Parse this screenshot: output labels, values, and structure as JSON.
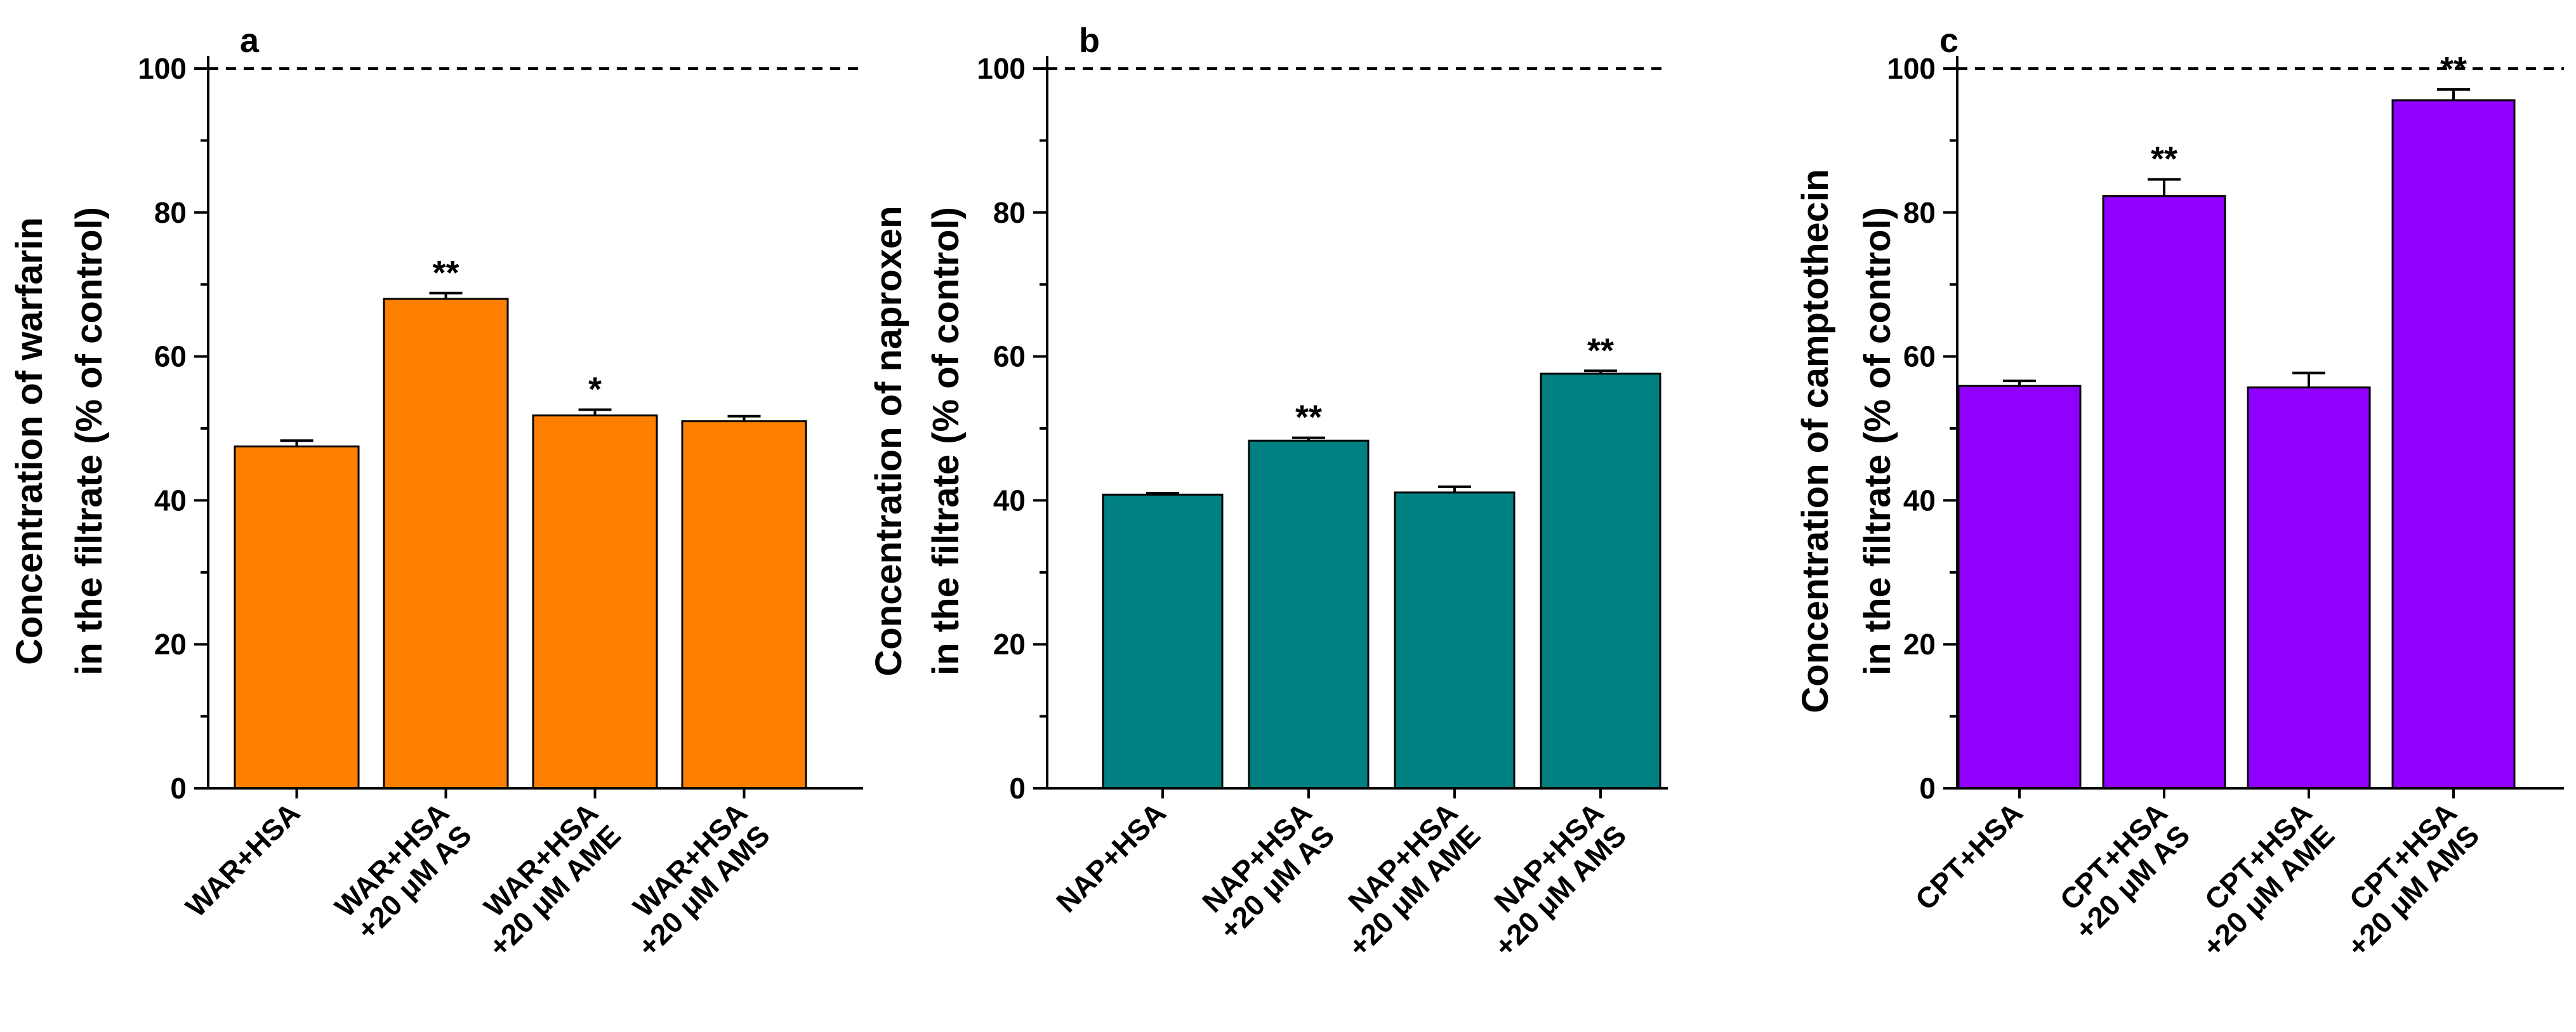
{
  "chart_data": [
    {
      "type": "bar",
      "panel_label": "a",
      "ylabel": [
        "Concentration of warfarin",
        "in the filtrate (% of control)"
      ],
      "xlabel": "",
      "ylim": [
        0,
        100
      ],
      "yticks": [
        0,
        20,
        40,
        60,
        80,
        100
      ],
      "reference_line": 100,
      "bar_color": "#FF8000",
      "categories": [
        [
          "WAR+HSA"
        ],
        [
          "WAR+HSA",
          "+20 μM AS"
        ],
        [
          "WAR+HSA",
          "+20 μM AME"
        ],
        [
          "WAR+HSA",
          "+20 μM AMS"
        ]
      ],
      "values": [
        47.5,
        68.0,
        51.8,
        51.0
      ],
      "errors": [
        0.8,
        0.8,
        0.8,
        0.7
      ],
      "significance": [
        "",
        "**",
        "*",
        ""
      ]
    },
    {
      "type": "bar",
      "panel_label": "b",
      "ylabel": [
        "Concentration of naproxen",
        "in the filtrate (% of control)"
      ],
      "xlabel": "",
      "ylim": [
        0,
        100
      ],
      "yticks": [
        0,
        20,
        40,
        60,
        80,
        100
      ],
      "reference_line": 100,
      "bar_color": "#008080",
      "categories": [
        [
          "NAP+HSA"
        ],
        [
          "NAP+HSA",
          "+20 μM AS"
        ],
        [
          "NAP+HSA",
          "+20 μM AME"
        ],
        [
          "NAP+HSA",
          "+20 μM AMS"
        ]
      ],
      "values": [
        40.8,
        48.3,
        41.1,
        57.6
      ],
      "errors": [
        0.2,
        0.4,
        0.8,
        0.4
      ],
      "significance": [
        "",
        "**",
        "",
        "**"
      ]
    },
    {
      "type": "bar",
      "panel_label": "c",
      "ylabel": [
        "Concentration of camptothecin",
        "in the filtrate (% of control)"
      ],
      "xlabel": "",
      "ylim": [
        0,
        100
      ],
      "yticks": [
        0,
        20,
        40,
        60,
        80,
        100
      ],
      "reference_line": 100,
      "bar_color": "#8F00FF",
      "categories": [
        [
          "CPT+HSA"
        ],
        [
          "CPT+HSA",
          "+20 μM AS"
        ],
        [
          "CPT+HSA",
          "+20 μM AME"
        ],
        [
          "CPT+HSA",
          "+20 μM AMS"
        ]
      ],
      "values": [
        55.9,
        82.3,
        55.7,
        95.6
      ],
      "errors": [
        0.7,
        2.3,
        2.0,
        1.5
      ],
      "significance": [
        "",
        "**",
        "",
        "**"
      ]
    }
  ]
}
